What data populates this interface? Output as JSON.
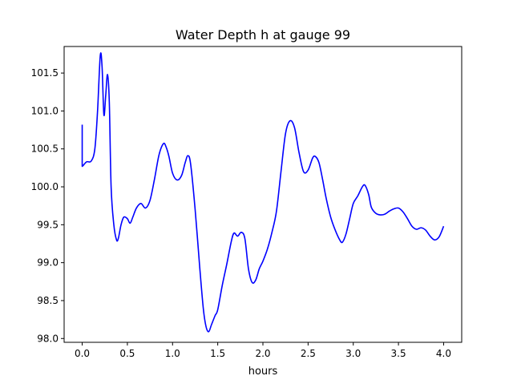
{
  "chart_data": {
    "type": "line",
    "title": "Water Depth h at gauge 99",
    "xlabel": "hours",
    "ylabel": "",
    "xlim": [
      -0.2,
      4.2
    ],
    "ylim": [
      97.95,
      101.85
    ],
    "xticks": [
      0.0,
      0.5,
      1.0,
      1.5,
      2.0,
      2.5,
      3.0,
      3.5,
      4.0
    ],
    "xtick_labels": [
      "0.0",
      "0.5",
      "1.0",
      "1.5",
      "2.0",
      "2.5",
      "3.0",
      "3.5",
      "4.0"
    ],
    "yticks": [
      98.0,
      98.5,
      99.0,
      99.5,
      100.0,
      100.5,
      101.0,
      101.5
    ],
    "ytick_labels": [
      "98.0",
      "98.5",
      "99.0",
      "99.5",
      "100.0",
      "100.5",
      "101.0",
      "101.5"
    ],
    "grid": false,
    "series": [
      {
        "color": "#0000ff",
        "x": [
          0.0,
          0.0,
          0.01,
          0.05,
          0.1,
          0.14,
          0.17,
          0.2,
          0.22,
          0.24,
          0.26,
          0.28,
          0.3,
          0.32,
          0.35,
          0.38,
          0.4,
          0.43,
          0.46,
          0.5,
          0.53,
          0.56,
          0.6,
          0.65,
          0.7,
          0.75,
          0.8,
          0.85,
          0.9,
          0.93,
          0.96,
          1.0,
          1.05,
          1.1,
          1.14,
          1.17,
          1.2,
          1.25,
          1.3,
          1.34,
          1.37,
          1.4,
          1.43,
          1.47,
          1.5,
          1.55,
          1.6,
          1.65,
          1.68,
          1.72,
          1.76,
          1.8,
          1.84,
          1.88,
          1.92,
          1.96,
          2.0,
          2.05,
          2.1,
          2.15,
          2.2,
          2.25,
          2.3,
          2.35,
          2.4,
          2.45,
          2.5,
          2.55,
          2.58,
          2.62,
          2.66,
          2.7,
          2.75,
          2.8,
          2.85,
          2.88,
          2.92,
          2.96,
          3.0,
          3.05,
          3.1,
          3.13,
          3.17,
          3.2,
          3.25,
          3.3,
          3.35,
          3.4,
          3.45,
          3.5,
          3.55,
          3.6,
          3.65,
          3.7,
          3.75,
          3.8,
          3.85,
          3.9,
          3.95,
          4.0
        ],
        "y": [
          100.82,
          100.27,
          100.28,
          100.33,
          100.34,
          100.5,
          101.0,
          101.73,
          101.58,
          100.95,
          101.2,
          101.48,
          101.12,
          100.0,
          99.5,
          99.3,
          99.32,
          99.5,
          99.6,
          99.58,
          99.52,
          99.6,
          99.72,
          99.78,
          99.72,
          99.82,
          100.1,
          100.42,
          100.57,
          100.52,
          100.4,
          100.18,
          100.09,
          100.15,
          100.32,
          100.41,
          100.3,
          99.7,
          98.95,
          98.4,
          98.16,
          98.09,
          98.18,
          98.3,
          98.38,
          98.7,
          98.98,
          99.28,
          99.39,
          99.35,
          99.4,
          99.32,
          98.92,
          98.74,
          98.77,
          98.92,
          99.02,
          99.18,
          99.4,
          99.68,
          100.2,
          100.7,
          100.87,
          100.78,
          100.45,
          100.2,
          100.22,
          100.38,
          100.4,
          100.32,
          100.1,
          99.85,
          99.6,
          99.43,
          99.3,
          99.27,
          99.38,
          99.58,
          99.78,
          99.88,
          100.0,
          100.02,
          99.9,
          99.73,
          99.65,
          99.63,
          99.64,
          99.68,
          99.71,
          99.72,
          99.67,
          99.58,
          99.48,
          99.44,
          99.46,
          99.43,
          99.35,
          99.3,
          99.34,
          99.48
        ]
      }
    ]
  }
}
